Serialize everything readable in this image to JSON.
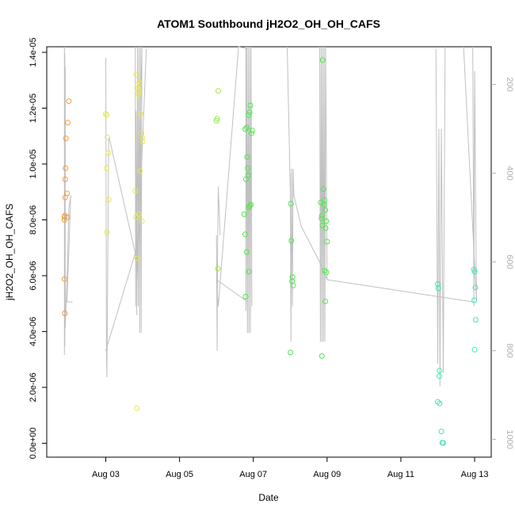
{
  "chart_data": {
    "type": "scatter",
    "title": "ATOM1 Southbound jH2O2_OH_OH_CAFS",
    "xlabel": "Date",
    "ylabel": "jH2O2_OH_OH_CAFS",
    "x_ticks": [
      {
        "day": 3,
        "label": "Aug 03"
      },
      {
        "day": 5,
        "label": "Aug 05"
      },
      {
        "day": 7,
        "label": "Aug 07"
      },
      {
        "day": 9,
        "label": "Aug 09"
      },
      {
        "day": 11,
        "label": "Aug 11"
      },
      {
        "day": 13,
        "label": "Aug 13"
      }
    ],
    "xlim": [
      1.4,
      13.45
    ],
    "y_ticks": [
      {
        "value": 0,
        "label": "0.0e+00"
      },
      {
        "value": 2e-06,
        "label": "2.0e-06"
      },
      {
        "value": 4e-06,
        "label": "4.0e-06"
      },
      {
        "value": 6e-06,
        "label": "6.0e-06"
      },
      {
        "value": 8e-06,
        "label": "8.0e-06"
      },
      {
        "value": 1e-05,
        "label": "1.0e-05"
      },
      {
        "value": 1.2e-05,
        "label": "1.2e-05"
      },
      {
        "value": 1.4e-05,
        "label": "1.4e-05"
      }
    ],
    "ylim": [
      -5e-07,
      1.42e-05
    ],
    "y2_label": "",
    "y2_ticks": [
      {
        "value": 200,
        "label": "200"
      },
      {
        "value": 400,
        "label": "400"
      },
      {
        "value": 600,
        "label": "600"
      },
      {
        "value": 800,
        "label": "800"
      },
      {
        "value": 1000,
        "label": "1000"
      }
    ],
    "y2lim": [
      1040,
      115
    ],
    "grid": false,
    "legend": "none",
    "line_color": "#c0c0c0",
    "point_groups": [
      {
        "color": "#f39c3a",
        "points": [
          [
            1.88,
            8.1e-06
          ],
          [
            1.88,
            8e-06
          ],
          [
            1.89,
            8.15e-06
          ],
          [
            1.9,
            8.8e-06
          ],
          [
            1.9,
            9.45e-06
          ],
          [
            1.91,
            9.85e-06
          ],
          [
            1.92,
            1.092e-05
          ],
          [
            1.95,
            8.95e-06
          ],
          [
            1.96,
            8.1e-06
          ],
          [
            1.97,
            1.148e-05
          ],
          [
            2.0,
            1.225e-05
          ],
          [
            1.88,
            5.88e-06
          ],
          [
            1.89,
            4.65e-06
          ]
        ]
      },
      {
        "color": "#e8e84a",
        "points": [
          [
            3.0,
            1.18e-05
          ],
          [
            3.03,
            1.175e-05
          ],
          [
            3.05,
            1.095e-05
          ],
          [
            3.07,
            1.04e-05
          ],
          [
            3.02,
            9.85e-06
          ],
          [
            3.08,
            8.72e-06
          ],
          [
            3.03,
            7.55e-06
          ],
          [
            3.83,
            1.32e-05
          ],
          [
            3.86,
            1.285e-05
          ],
          [
            3.88,
            1.272e-05
          ],
          [
            3.9,
            1.26e-05
          ],
          [
            3.92,
            1.29e-05
          ],
          [
            3.88,
            1.25e-05
          ],
          [
            3.95,
            1.18e-05
          ],
          [
            3.97,
            1.11e-05
          ],
          [
            3.99,
            1.095e-05
          ],
          [
            4.0,
            1.08e-05
          ],
          [
            3.93,
            9.75e-06
          ],
          [
            3.8,
            9.05e-06
          ],
          [
            3.82,
            8.1e-06
          ],
          [
            3.9,
            8.2e-06
          ],
          [
            3.98,
            7.95e-06
          ],
          [
            3.85,
            6.62e-06
          ],
          [
            3.84,
            1.25e-06
          ]
        ]
      },
      {
        "color": "#9be84a",
        "points": [
          [
            6.0,
            1.155e-05
          ],
          [
            6.02,
            1.162e-05
          ],
          [
            6.05,
            1.262e-05
          ],
          [
            6.04,
            6.25e-06
          ]
        ]
      },
      {
        "color": "#4be84a",
        "points": [
          [
            6.78,
            1.125e-05
          ],
          [
            6.82,
            1.13e-05
          ],
          [
            6.83,
            1.025e-05
          ],
          [
            6.88,
            1.175e-05
          ],
          [
            6.9,
            1.185e-05
          ],
          [
            6.92,
            1.21e-05
          ],
          [
            6.85,
            9.85e-06
          ],
          [
            6.8,
            9.45e-06
          ],
          [
            6.86,
            9.6e-06
          ],
          [
            6.87,
            8.45e-06
          ],
          [
            6.9,
            8.5e-06
          ],
          [
            6.93,
            8.55e-06
          ],
          [
            6.95,
            1.11e-05
          ],
          [
            6.97,
            1.12e-05
          ],
          [
            6.75,
            8.2e-06
          ],
          [
            6.78,
            7.48e-06
          ],
          [
            6.82,
            6.85e-06
          ],
          [
            6.88,
            6.15e-06
          ],
          [
            6.79,
            5.25e-06
          ],
          [
            8.02,
            8.58e-06
          ],
          [
            8.03,
            7.25e-06
          ],
          [
            8.06,
            5.95e-06
          ],
          [
            8.08,
            5.65e-06
          ],
          [
            8.05,
            5.8e-06
          ],
          [
            8.01,
            3.25e-06
          ],
          [
            8.88,
            1.372e-05
          ],
          [
            8.83,
            8.62e-06
          ],
          [
            8.86,
            8.15e-06
          ],
          [
            8.9,
            9.1e-06
          ],
          [
            8.92,
            8.55e-06
          ],
          [
            8.93,
            8.7e-06
          ],
          [
            8.95,
            8.35e-06
          ],
          [
            8.85,
            8.05e-06
          ],
          [
            8.98,
            7.95e-06
          ],
          [
            8.96,
            7.7e-06
          ],
          [
            8.87,
            7.8e-06
          ],
          [
            9.0,
            7.22e-06
          ],
          [
            8.93,
            6.18e-06
          ],
          [
            8.98,
            6.12e-06
          ],
          [
            8.95,
            5.08e-06
          ],
          [
            8.86,
            3.12e-06
          ]
        ]
      },
      {
        "color": "#3de8b0",
        "points": [
          [
            12.0,
            5.7e-06
          ],
          [
            12.02,
            5.55e-06
          ],
          [
            12.05,
            2.6e-06
          ],
          [
            12.04,
            2.4e-06
          ],
          [
            12.0,
            1.48e-06
          ],
          [
            12.05,
            1.42e-06
          ],
          [
            12.1,
            4.2e-07
          ],
          [
            12.12,
            2e-08
          ],
          [
            12.15,
            1e-08
          ],
          [
            12.98,
            6.22e-06
          ],
          [
            13.0,
            6.15e-06
          ],
          [
            13.02,
            5.58e-06
          ],
          [
            12.99,
            5.12e-06
          ],
          [
            13.03,
            4.42e-06
          ],
          [
            13.0,
            3.35e-06
          ]
        ]
      }
    ],
    "altitude_segments": [
      [
        [
          1.88,
          115
        ],
        [
          1.88,
          810
        ],
        [
          1.89,
          130
        ],
        [
          1.89,
          790
        ],
        [
          1.9,
          160
        ],
        [
          1.9,
          750
        ],
        [
          1.93,
          680
        ],
        [
          1.96,
          610
        ],
        [
          2.0,
          480
        ],
        [
          2.05,
          450
        ],
        [
          1.95,
          690
        ],
        [
          2.1,
          690
        ]
      ],
      [
        [
          3.0,
          140
        ],
        [
          3.02,
          800
        ],
        [
          3.03,
          860
        ],
        [
          3.08,
          320
        ],
        [
          3.12,
          330
        ],
        [
          3.8,
          580
        ],
        [
          3.0,
          800
        ]
      ],
      [
        [
          3.8,
          115
        ],
        [
          3.81,
          700
        ],
        [
          3.82,
          260
        ],
        [
          3.84,
          720
        ],
        [
          3.86,
          115
        ],
        [
          3.88,
          700
        ],
        [
          3.9,
          115
        ],
        [
          3.92,
          760
        ],
        [
          3.94,
          115
        ],
        [
          3.96,
          760
        ],
        [
          3.98,
          115
        ],
        [
          3.84,
          650
        ],
        [
          4.1,
          120
        ]
      ],
      [
        [
          6.0,
          540
        ],
        [
          6.02,
          800
        ],
        [
          6.03,
          580
        ],
        [
          6.05,
          430
        ],
        [
          6.1,
          540
        ]
      ],
      [
        [
          6.8,
          115
        ],
        [
          6.8,
          710
        ],
        [
          6.82,
          115
        ],
        [
          6.84,
          760
        ],
        [
          6.86,
          115
        ],
        [
          6.88,
          760
        ],
        [
          6.9,
          115
        ],
        [
          6.92,
          760
        ],
        [
          6.94,
          115
        ],
        [
          6.96,
          700
        ]
      ],
      [
        [
          6.85,
          690
        ],
        [
          6.0,
          640
        ],
        [
          6.05,
          700
        ],
        [
          6.6,
          115
        ],
        [
          6.85,
          120
        ]
      ],
      [
        [
          8.0,
          400
        ],
        [
          8.02,
          780
        ],
        [
          8.04,
          390
        ],
        [
          8.06,
          700
        ],
        [
          8.08,
          390
        ],
        [
          8.1,
          450
        ],
        [
          8.3,
          520
        ],
        [
          8.8,
          600
        ],
        [
          9.0,
          640
        ],
        [
          12.95,
          690
        ]
      ],
      [
        [
          8.8,
          115
        ],
        [
          8.82,
          780
        ],
        [
          8.84,
          115
        ],
        [
          8.86,
          780
        ],
        [
          8.88,
          115
        ],
        [
          8.9,
          780
        ],
        [
          8.92,
          115
        ],
        [
          8.94,
          780
        ],
        [
          8.96,
          115
        ],
        [
          9.0,
          640
        ]
      ],
      [
        [
          8.0,
          430
        ],
        [
          7.92,
          115
        ]
      ],
      [
        [
          11.95,
          120
        ],
        [
          12.0,
          830
        ],
        [
          12.03,
          300
        ],
        [
          12.06,
          880
        ],
        [
          12.1,
          300
        ],
        [
          12.15,
          850
        ],
        [
          12.2,
          115
        ]
      ],
      [
        [
          12.95,
          115
        ],
        [
          12.98,
          700
        ],
        [
          13.0,
          170
        ],
        [
          13.05,
          690
        ],
        [
          12.7,
          115
        ]
      ]
    ]
  }
}
